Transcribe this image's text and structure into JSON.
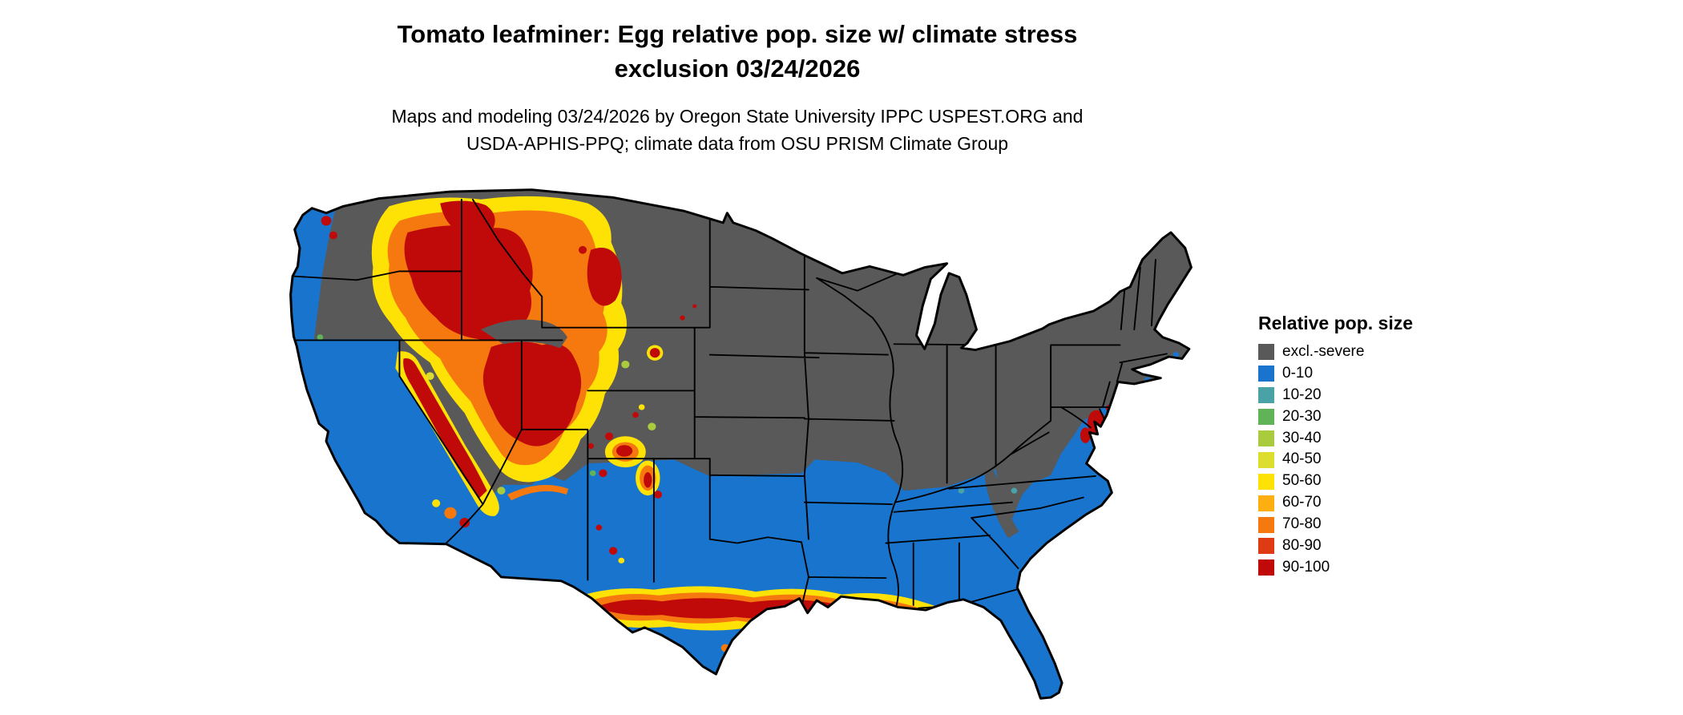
{
  "title": {
    "line1": "Tomato leafminer: Egg relative pop. size w/ climate stress",
    "line2": "exclusion 03/24/2026"
  },
  "subtitle": {
    "line1": "Maps and modeling 03/24/2026 by Oregon State University IPPC USPEST.ORG and",
    "line2": "USDA-APHIS-PPQ; climate data from OSU PRISM Climate Group"
  },
  "legend": {
    "title": "Relative pop. size",
    "items": [
      {
        "key": "excl",
        "label": "excl.-severe"
      },
      {
        "key": "v0_10",
        "label": "0-10"
      },
      {
        "key": "v10_20",
        "label": "10-20"
      },
      {
        "key": "v20_30",
        "label": "20-30"
      },
      {
        "key": "v30_40",
        "label": "30-40"
      },
      {
        "key": "v40_50",
        "label": "40-50"
      },
      {
        "key": "v50_60",
        "label": "50-60"
      },
      {
        "key": "v60_70",
        "label": "60-70"
      },
      {
        "key": "v70_80",
        "label": "70-80"
      },
      {
        "key": "v80_90",
        "label": "80-90"
      },
      {
        "key": "v90_100",
        "label": "90-100"
      }
    ]
  },
  "map": {
    "palette": {
      "excl": "#595959",
      "v0_10": "#1874CD",
      "v10_20": "#49A2A6",
      "v20_30": "#60B356",
      "v30_40": "#AACB3D",
      "v40_50": "#DCDD2C",
      "v50_60": "#FFE205",
      "v60_70": "#FDAE10",
      "v70_80": "#F5790E",
      "v80_90": "#DE3B14",
      "v90_100": "#C00A0A",
      "border": "#000000"
    }
  }
}
